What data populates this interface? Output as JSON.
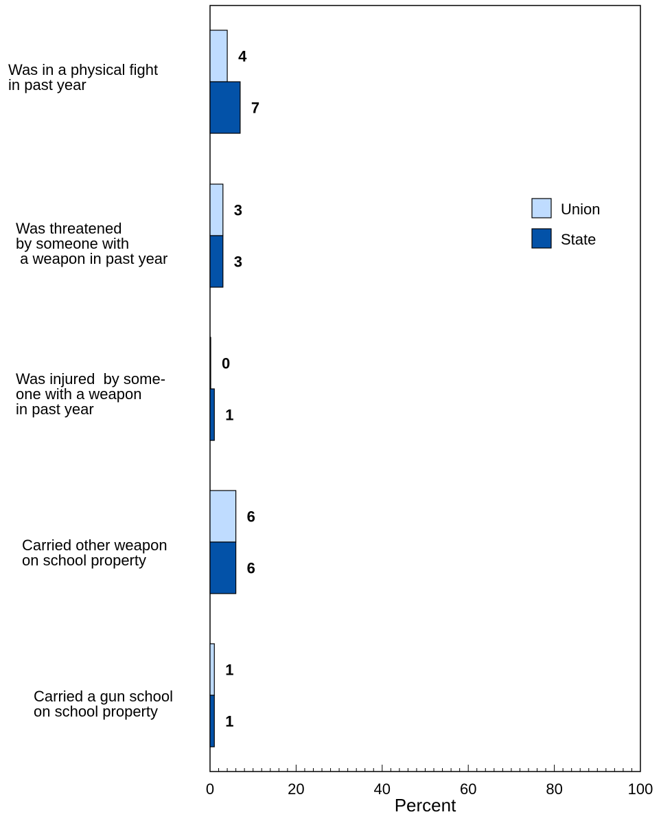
{
  "chart_data": {
    "type": "bar",
    "orientation": "horizontal",
    "categories": [
      [
        "Was in a physical fight",
        "in past year"
      ],
      [
        "Was threatened",
        "by someone with",
        " a weapon in past year"
      ],
      [
        "Was injured  by some-",
        "one with a weapon",
        "in past year"
      ],
      [
        "Carried other weapon",
        "on school property"
      ],
      [
        "Carried a gun school",
        "on school property"
      ]
    ],
    "series": [
      {
        "name": "Union",
        "color": "#bfdcff",
        "values": [
          4,
          3,
          0,
          6,
          1
        ]
      },
      {
        "name": "State",
        "color": "#0352a8",
        "values": [
          7,
          3,
          1,
          6,
          1
        ]
      }
    ],
    "xlabel": "Percent",
    "xlim": [
      0,
      100
    ],
    "xticks": [
      0,
      20,
      40,
      60,
      80,
      100
    ],
    "legend": "right",
    "grid": false
  }
}
